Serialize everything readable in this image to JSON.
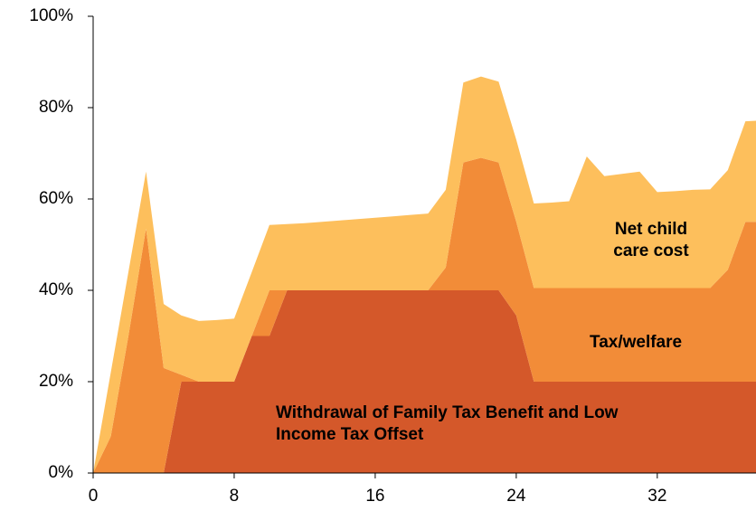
{
  "chart_data": {
    "type": "stacked-area",
    "x": [
      0,
      1,
      2,
      3,
      4,
      5,
      6,
      7,
      8,
      9,
      10,
      11,
      12,
      13,
      14,
      15,
      16,
      17,
      18,
      19,
      20,
      21,
      22,
      23,
      24,
      25,
      26,
      27,
      28,
      29,
      30,
      31,
      32,
      33,
      34,
      35,
      36,
      37,
      38
    ],
    "series": [
      {
        "name": "Withdrawal of Family Tax Benefit and Low Income Tax Offset",
        "color": "#d4582a",
        "values": [
          0,
          0,
          0,
          0,
          0,
          20,
          20,
          20,
          20,
          30,
          30,
          40,
          40,
          40,
          40,
          40,
          40,
          40,
          40,
          40,
          40,
          40,
          40,
          40,
          34.5,
          20,
          20,
          20,
          20,
          20,
          20,
          20,
          20,
          20,
          20,
          20,
          20,
          20,
          20
        ]
      },
      {
        "name": "Tax/welfare",
        "color": "#f28c38",
        "values": [
          0,
          8,
          30,
          53.5,
          23,
          1.5,
          0,
          0,
          0,
          0,
          10,
          0,
          0,
          0,
          0,
          0,
          0,
          0,
          0,
          0,
          5,
          28,
          29,
          28,
          20.5,
          20.5,
          20.5,
          20.5,
          20.5,
          20.5,
          20.5,
          20.5,
          20.5,
          20.5,
          20.5,
          20.5,
          24.5,
          35,
          35
        ]
      },
      {
        "name": "Net child care cost",
        "color": "#fdbf5c",
        "values": [
          0,
          14,
          14,
          12.5,
          14,
          13,
          13.3,
          13.5,
          13.8,
          14,
          14.3,
          14.5,
          14.7,
          15,
          15.3,
          15.6,
          15.9,
          16.2,
          16.5,
          16.8,
          17,
          17.5,
          17.8,
          17.7,
          18,
          18.5,
          18.7,
          19,
          28.8,
          24.5,
          25,
          25.5,
          21,
          21.2,
          21.5,
          21.6,
          21.8,
          22,
          22.2
        ]
      }
    ],
    "xlim": [
      0,
      37.6
    ],
    "xticks": [
      0,
      8,
      16,
      24,
      32
    ],
    "ylim": [
      0,
      100
    ],
    "yticks": [
      {
        "value": 0,
        "label": "0%"
      },
      {
        "value": 20,
        "label": "20%"
      },
      {
        "value": 40,
        "label": "40%"
      },
      {
        "value": 60,
        "label": "60%"
      },
      {
        "value": 80,
        "label": "80%"
      },
      {
        "value": 100,
        "label": "100%"
      }
    ],
    "grid": false
  }
}
